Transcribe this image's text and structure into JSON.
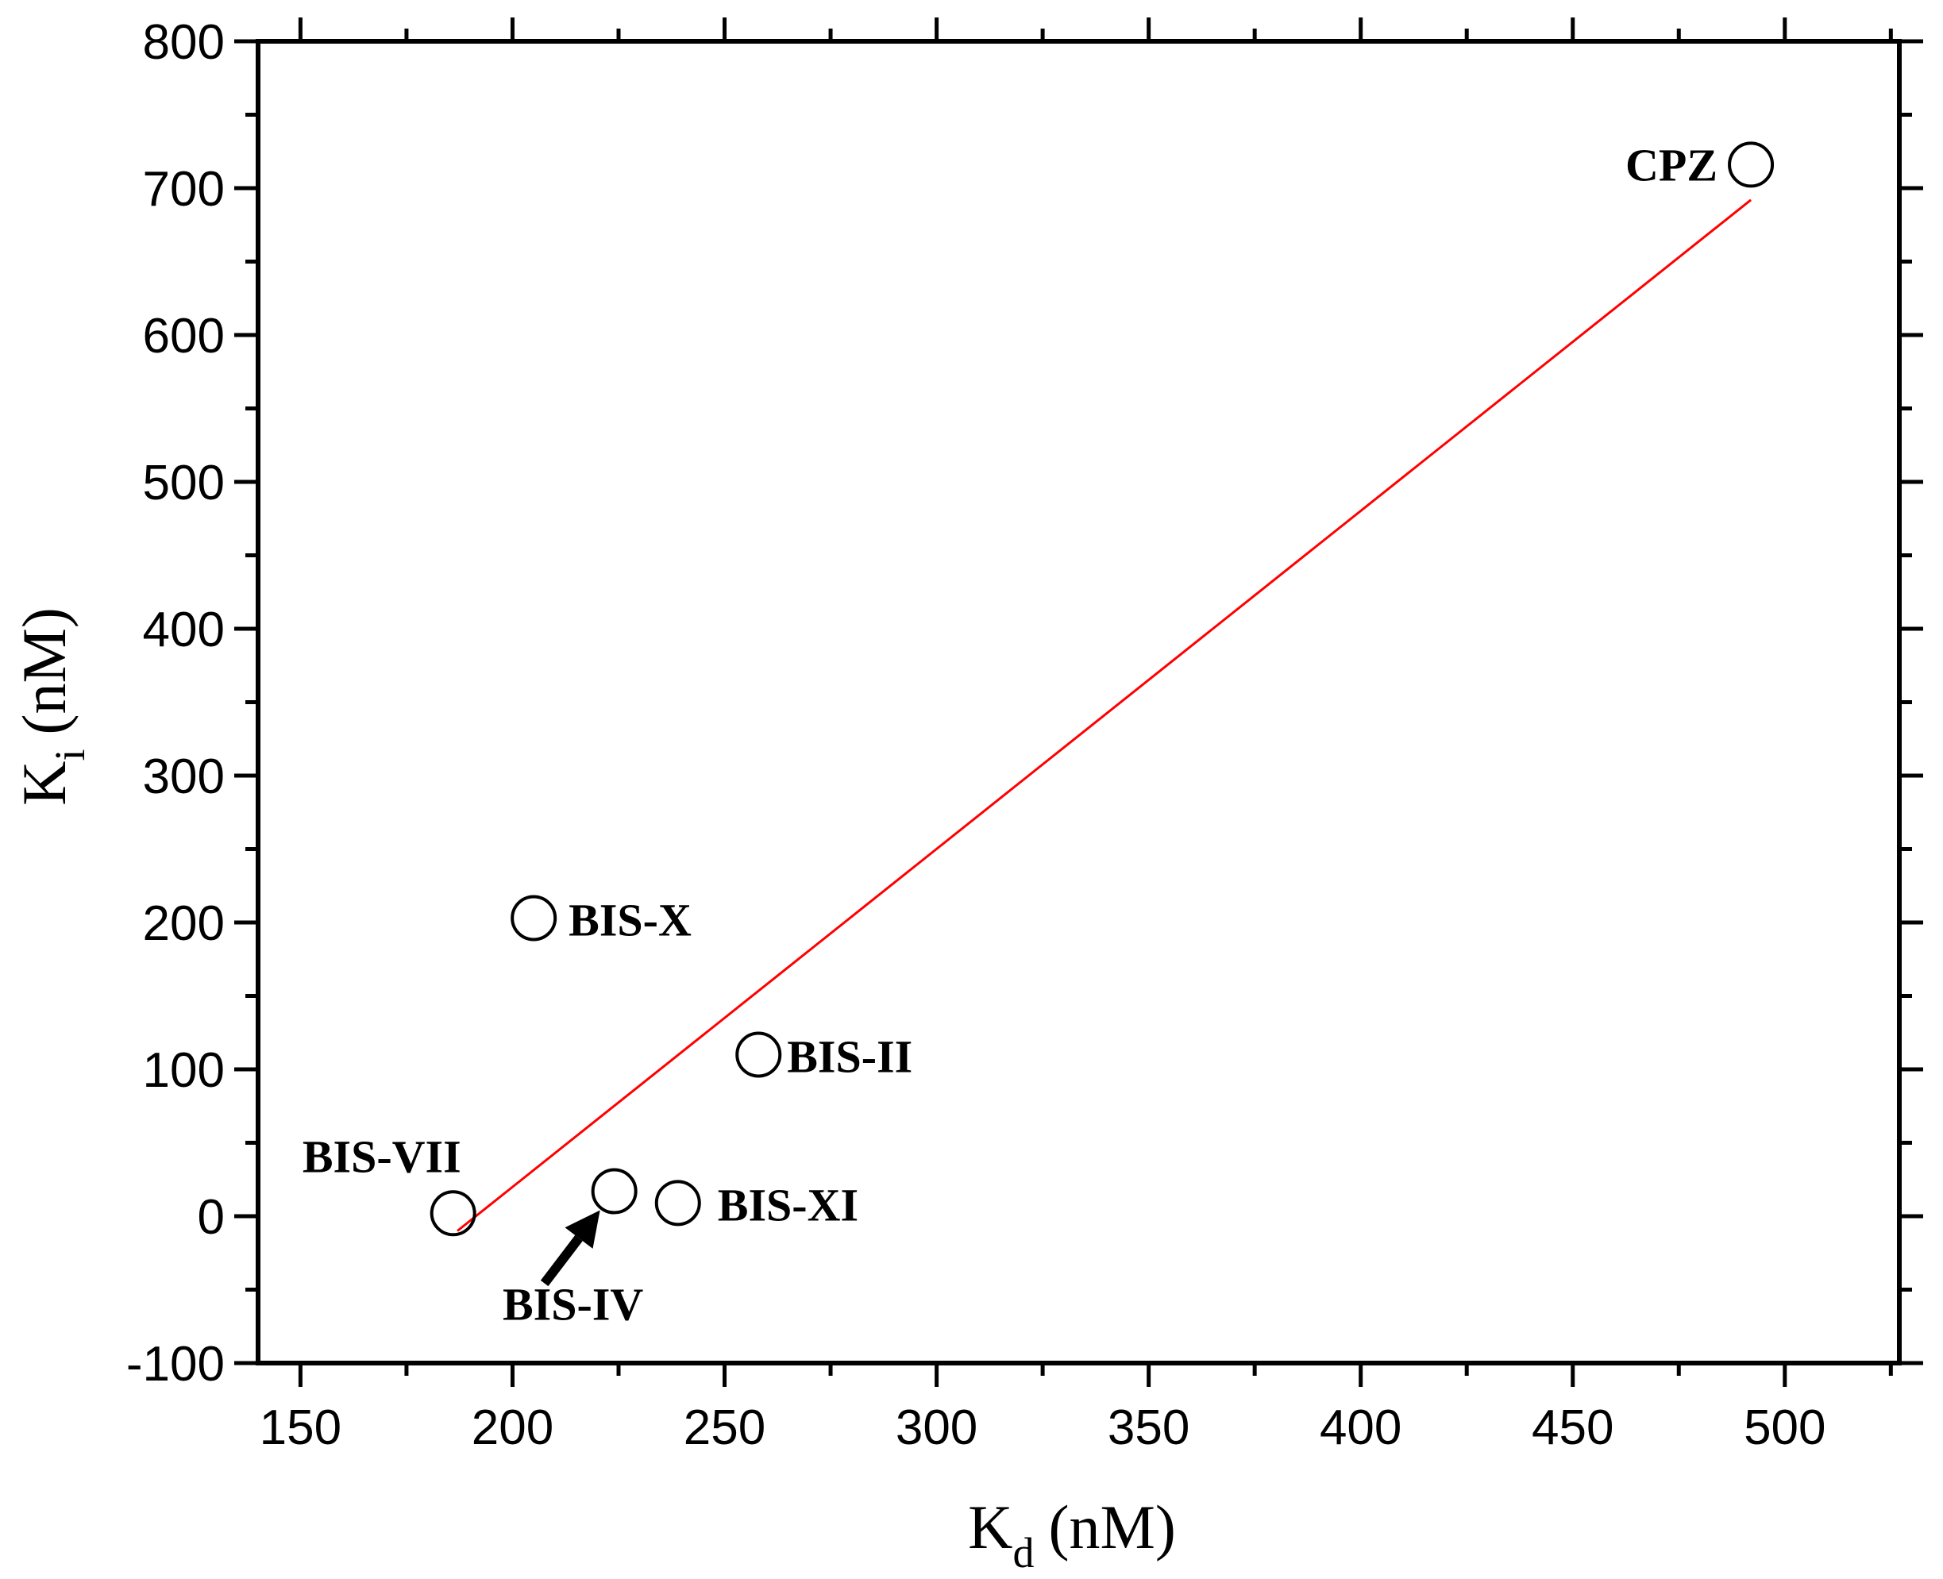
{
  "chart_data": {
    "type": "scatter",
    "title": "",
    "xlabel": {
      "main": "K",
      "sub": "d",
      "unit": "(nM)"
    },
    "ylabel": {
      "main": "K",
      "sub": "i",
      "unit": "(nM)"
    },
    "xlim": [
      140,
      527
    ],
    "ylim": [
      -100,
      800
    ],
    "xticks": [
      150,
      200,
      250,
      300,
      350,
      400,
      450,
      500
    ],
    "yticks": [
      -100,
      0,
      100,
      200,
      300,
      400,
      500,
      600,
      700,
      800
    ],
    "grid": false,
    "legend": "none",
    "points": [
      {
        "label": "CPZ",
        "x": 492,
        "y": 716
      },
      {
        "label": "BIS-X",
        "x": 205,
        "y": 203
      },
      {
        "label": "BIS-II",
        "x": 258,
        "y": 110
      },
      {
        "label": "BIS-VII",
        "x": 186,
        "y": 2
      },
      {
        "label": "BIS-IV",
        "x": 224,
        "y": 17
      },
      {
        "label": "BIS-XI",
        "x": 239,
        "y": 9
      }
    ],
    "fit_line": {
      "x": [
        187,
        492
      ],
      "y": [
        -10,
        692
      ],
      "color": "#ff0000"
    },
    "colors": {
      "marker_stroke": "#000000",
      "axis": "#000000",
      "fit": "#ff0000"
    }
  }
}
